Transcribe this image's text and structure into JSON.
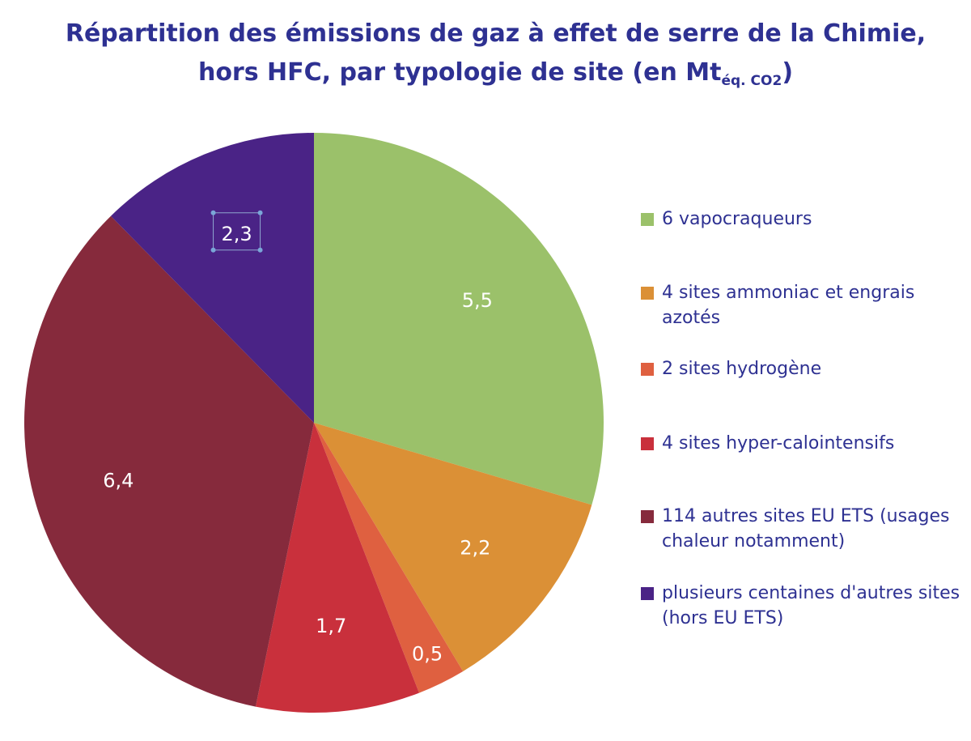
{
  "title": {
    "line1": "Répartition des émissions de gaz à effet de serre de la Chimie,",
    "line2_main": "hors HFC, par typologie de site (en Mt",
    "line2_sub": "éq. CO2",
    "line2_end": ")"
  },
  "chart_data": {
    "type": "pie",
    "title": "Répartition des émissions de gaz à effet de serre de la Chimie, hors HFC, par typologie de site (en Mtéq. CO2)",
    "legend_position": "right",
    "start": "top, clockwise",
    "slices": [
      {
        "label": "6 vapocraqueurs",
        "value": 5.5,
        "display": "5,5",
        "color": "#9bc16a"
      },
      {
        "label": "4 sites ammoniac et engrais azotés",
        "value": 2.2,
        "display": "2,2",
        "color": "#db9036"
      },
      {
        "label": "2 sites hydrogène",
        "value": 0.5,
        "display": "0,5",
        "color": "#df6040"
      },
      {
        "label": "4 sites hyper-calointensifs",
        "value": 1.7,
        "display": "1,7",
        "color": "#c9303c"
      },
      {
        "label": "114 autres sites EU ETS (usages chaleur notamment)",
        "value": 6.4,
        "display": "6,4",
        "color": "#862a3c"
      },
      {
        "label": "plusieurs centaines d'autres sites (hors EU ETS)",
        "value": 2.3,
        "display": "2,3",
        "color": "#4a2386"
      }
    ]
  }
}
